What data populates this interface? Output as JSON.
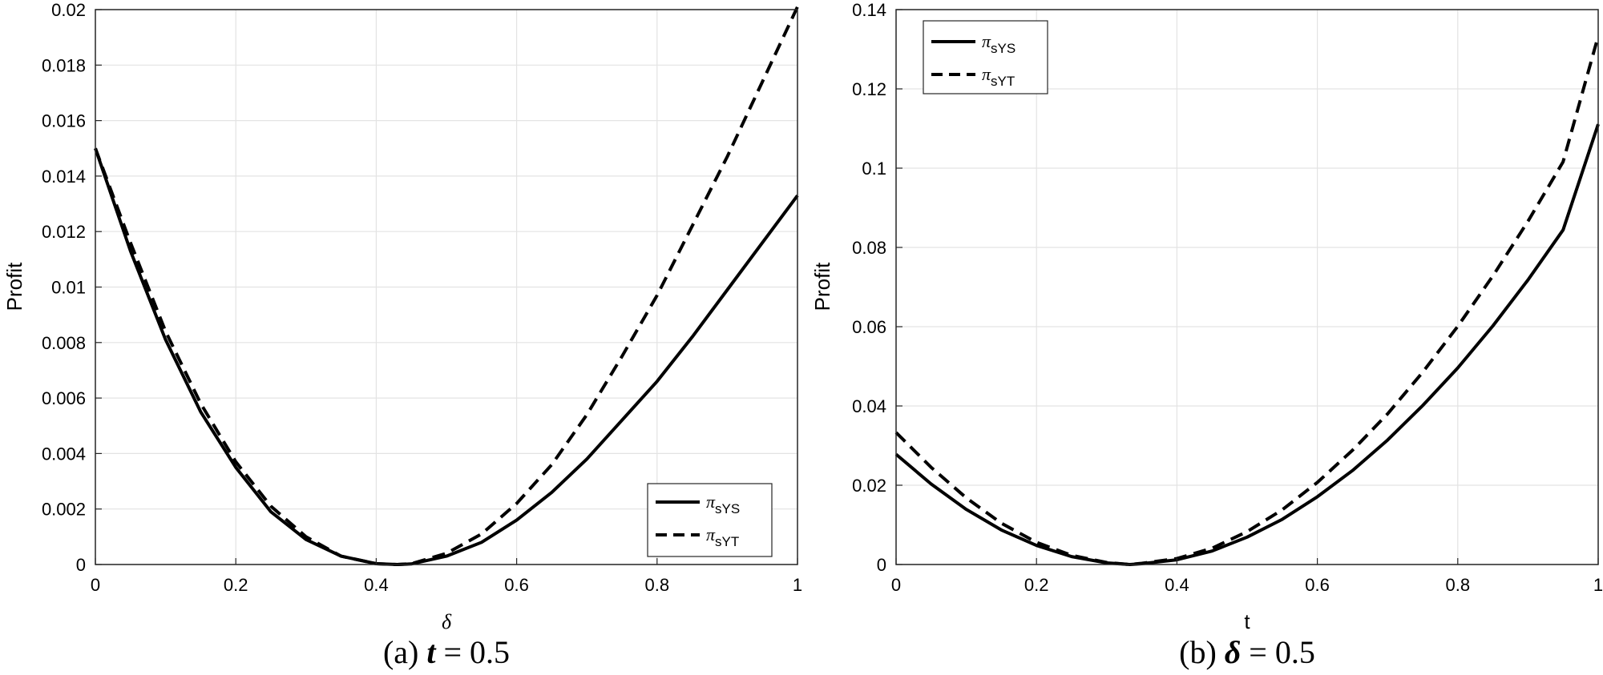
{
  "chart_data": [
    {
      "type": "line",
      "caption": "(a) t = 0.5",
      "caption_parts": {
        "prefix": "(a)",
        "var": "t",
        "eq": "= 0.5"
      },
      "xlabel": "δ",
      "ylabel": "Profit",
      "xlim": [
        0,
        1
      ],
      "ylim": [
        0,
        0.02
      ],
      "xticks": [
        0,
        0.2,
        0.4,
        0.6,
        0.8,
        1
      ],
      "xtick_labels": [
        "0",
        "0.2",
        "0.4",
        "0.6",
        "0.8",
        "1"
      ],
      "yticks": [
        0,
        0.002,
        0.004,
        0.006,
        0.008,
        0.01,
        0.012,
        0.014,
        0.016,
        0.018,
        0.02
      ],
      "ytick_labels": [
        "0",
        "0.002",
        "0.004",
        "0.006",
        "0.008",
        "0.01",
        "0.012",
        "0.014",
        "0.016",
        "0.018",
        "0.02"
      ],
      "grid": true,
      "legend_position": "bottom-right",
      "series": [
        {
          "name": "π_sYS",
          "name_main": "π",
          "name_sub": "sYS",
          "style": "solid",
          "x": [
            0,
            0.05,
            0.1,
            0.15,
            0.2,
            0.25,
            0.3,
            0.35,
            0.4,
            0.43,
            0.45,
            0.5,
            0.55,
            0.6,
            0.65,
            0.7,
            0.75,
            0.8,
            0.85,
            0.9,
            0.95,
            1
          ],
          "y": [
            0.015,
            0.0113,
            0.0081,
            0.0055,
            0.0035,
            0.0019,
            0.0009,
            0.0003,
            3e-05,
            0,
            2e-05,
            0.0003,
            0.0008,
            0.0016,
            0.0026,
            0.0038,
            0.0052,
            0.0066,
            0.0082,
            0.0099,
            0.0116,
            0.0133
          ]
        },
        {
          "name": "π_sYT",
          "name_main": "π",
          "name_sub": "sYT",
          "style": "dashed",
          "x": [
            0,
            0.05,
            0.1,
            0.15,
            0.2,
            0.25,
            0.3,
            0.35,
            0.4,
            0.43,
            0.45,
            0.5,
            0.55,
            0.6,
            0.65,
            0.7,
            0.75,
            0.8,
            0.85,
            0.9,
            0.95,
            1
          ],
          "y": [
            0.015,
            0.0116,
            0.0084,
            0.0058,
            0.0037,
            0.0021,
            0.001,
            0.0003,
            3e-05,
            0,
            3e-05,
            0.0004,
            0.0011,
            0.0022,
            0.0036,
            0.0054,
            0.0075,
            0.0097,
            0.0122,
            0.0147,
            0.0174,
            0.0201
          ]
        }
      ]
    },
    {
      "type": "line",
      "caption": "(b) δ = 0.5",
      "caption_parts": {
        "prefix": "(b)",
        "var": "δ",
        "eq": "= 0.5"
      },
      "xlabel": "t",
      "ylabel": "Profit",
      "xlim": [
        0,
        1
      ],
      "ylim": [
        0,
        0.14
      ],
      "xticks": [
        0,
        0.2,
        0.4,
        0.6,
        0.8,
        1
      ],
      "xtick_labels": [
        "0",
        "0.2",
        "0.4",
        "0.6",
        "0.8",
        "1"
      ],
      "yticks": [
        0,
        0.02,
        0.04,
        0.06,
        0.08,
        0.1,
        0.12,
        0.14
      ],
      "ytick_labels": [
        "0",
        "0.02",
        "0.04",
        "0.06",
        "0.08",
        "0.1",
        "0.12",
        "0.14"
      ],
      "grid": true,
      "legend_position": "top-left",
      "series": [
        {
          "name": "π_sYS",
          "name_main": "π",
          "name_sub": "sYS",
          "style": "solid",
          "x": [
            0,
            0.05,
            0.1,
            0.15,
            0.2,
            0.25,
            0.3,
            0.333,
            0.35,
            0.4,
            0.45,
            0.5,
            0.55,
            0.6,
            0.65,
            0.7,
            0.75,
            0.8,
            0.85,
            0.9,
            0.95,
            1
          ],
          "y": [
            0.0278,
            0.0203,
            0.0139,
            0.0087,
            0.0048,
            0.002,
            0.0004,
            0,
            0.0002,
            0.0012,
            0.0034,
            0.0069,
            0.0114,
            0.0171,
            0.0237,
            0.0314,
            0.0401,
            0.0496,
            0.0602,
            0.0718,
            0.0844,
            0.1111
          ]
        },
        {
          "name": "π_sYT",
          "name_main": "π",
          "name_sub": "sYT",
          "style": "dashed",
          "x": [
            0,
            0.05,
            0.1,
            0.15,
            0.2,
            0.25,
            0.3,
            0.333,
            0.35,
            0.4,
            0.45,
            0.5,
            0.55,
            0.6,
            0.65,
            0.7,
            0.75,
            0.8,
            0.85,
            0.9,
            0.95,
            1
          ],
          "y": [
            0.0333,
            0.0245,
            0.0168,
            0.0104,
            0.0056,
            0.0023,
            0.0005,
            0,
            0.0003,
            0.0015,
            0.0041,
            0.0083,
            0.0138,
            0.0207,
            0.0288,
            0.038,
            0.0485,
            0.0601,
            0.0728,
            0.0866,
            0.1016,
            0.1333
          ]
        }
      ]
    }
  ]
}
